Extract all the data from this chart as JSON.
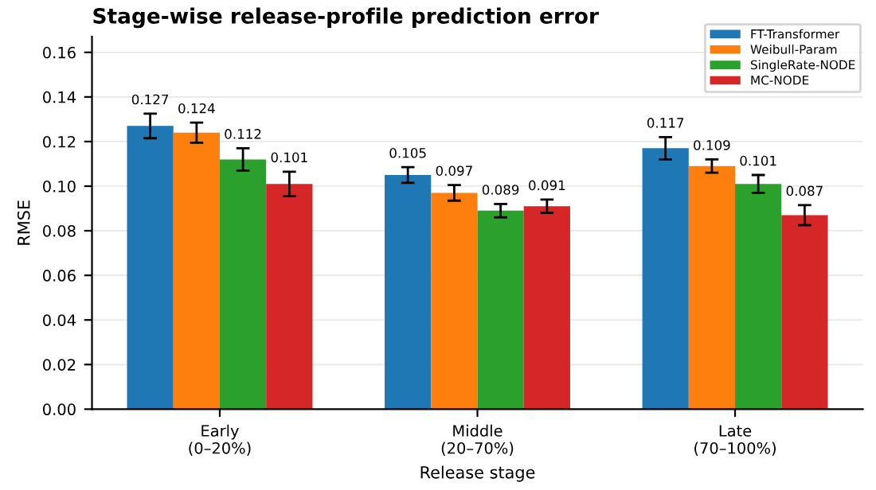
{
  "chart_data": {
    "type": "bar",
    "title": "Stage-wise release-profile prediction error",
    "xlabel": "Release stage",
    "ylabel": "RMSE",
    "categories": [
      "Early\n(0–20%)",
      "Middle\n(20–70%)",
      "Late\n(70–100%)"
    ],
    "series": [
      {
        "name": "FT-Transformer",
        "color": "#1f77b4",
        "values": [
          0.127,
          0.105,
          0.117
        ],
        "errors": [
          0.0055,
          0.0035,
          0.005
        ]
      },
      {
        "name": "Weibull-Param",
        "color": "#ff7f0e",
        "values": [
          0.124,
          0.097,
          0.109
        ],
        "errors": [
          0.0045,
          0.0035,
          0.003
        ]
      },
      {
        "name": "SingleRate-NODE",
        "color": "#2ca02c",
        "values": [
          0.112,
          0.089,
          0.101
        ],
        "errors": [
          0.005,
          0.003,
          0.004
        ]
      },
      {
        "name": "MC-NODE",
        "color": "#d62728",
        "values": [
          0.101,
          0.091,
          0.087
        ],
        "errors": [
          0.0055,
          0.003,
          0.0045
        ]
      }
    ],
    "ylim": [
      0,
      0.167
    ],
    "yticks": [
      {
        "value": 0,
        "label": "0.00"
      },
      {
        "value": 0.02,
        "label": "0.02"
      },
      {
        "value": 0.04,
        "label": "0.04"
      },
      {
        "value": 0.06,
        "label": "0.06"
      },
      {
        "value": 0.08,
        "label": "0.08"
      },
      {
        "value": 0.1,
        "label": "0.10"
      },
      {
        "value": 0.12,
        "label": "0.12"
      },
      {
        "value": 0.14,
        "label": "0.14"
      },
      {
        "value": 0.16,
        "label": "0.16"
      }
    ],
    "data_labels": true,
    "grid": "y",
    "legend": "top right"
  }
}
